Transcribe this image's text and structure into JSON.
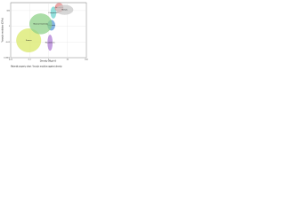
{
  "chart_data": {
    "type": "region",
    "xlabel": "Density (Mg/m³)",
    "ylabel": "Young's modulus (GPa)",
    "caption": "Material property chart: Young's modulus against density",
    "log": true,
    "grid": true,
    "xlim": [
      0.01,
      100
    ],
    "xticks": [
      0.01,
      0.1,
      1,
      10,
      100
    ],
    "ylim": [
      0.0001,
      1000
    ],
    "yticks": [
      0.0001,
      0.01,
      1,
      100
    ],
    "regions": [
      {
        "name": "Foams",
        "color": "#d9e86a",
        "x": [
          0.02,
          0.4
        ],
        "y": [
          0.0005,
          0.5
        ]
      },
      {
        "name": "Elastomers",
        "color": "#b07fd6",
        "x": [
          0.9,
          1.6
        ],
        "y": [
          0.0008,
          0.08
        ]
      },
      {
        "name": "Polymers",
        "color": "#5a9bd8",
        "x": [
          0.9,
          2.2
        ],
        "y": [
          0.3,
          6
        ]
      },
      {
        "name": "Natural materials",
        "color": "#8fd18a",
        "x": [
          0.1,
          1.5
        ],
        "y": [
          0.1,
          40
        ]
      },
      {
        "name": "Composites",
        "color": "#6fd6d0",
        "x": [
          1.3,
          2.5
        ],
        "y": [
          10,
          300
        ]
      },
      {
        "name": "Ceramics",
        "color": "#e58b8b",
        "x": [
          2.2,
          6
        ],
        "y": [
          60,
          900
        ]
      },
      {
        "name": "Metals",
        "color": "#c9c9c9",
        "x": [
          2.5,
          20
        ],
        "y": [
          30,
          500
        ]
      }
    ]
  }
}
